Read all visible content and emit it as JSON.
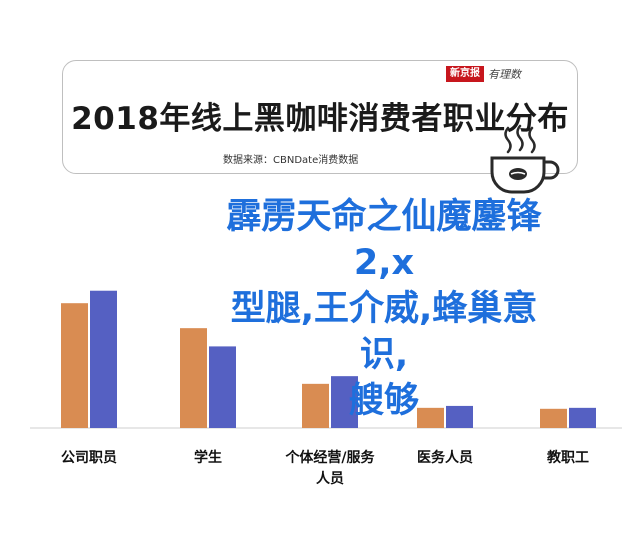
{
  "header": {
    "title": "2018年线上黑咖啡消费者职业分布",
    "source": "数据来源：CBNDate消费数据",
    "watermark_badge": "新京报",
    "watermark_text": "有理数"
  },
  "overlay": {
    "line1": "霹雳天命之仙魔鏖锋2,x",
    "line2": "型腿,王介威,蜂巢意识,",
    "line3": "艘够"
  },
  "chart_data": {
    "type": "bar",
    "title": "2018年线上黑咖啡消费者职业分布",
    "xlabel": "",
    "ylabel": "",
    "categories": [
      "公司职员",
      "学生",
      "个体经营/服务人员",
      "医务人员",
      "教职工"
    ],
    "category_lines": [
      [
        "公司职员"
      ],
      [
        "学生"
      ],
      [
        "个体经营/服务",
        "人员"
      ],
      [
        "医务人员"
      ],
      [
        "教职工"
      ]
    ],
    "series": [
      {
        "values": [
          130,
          104,
          46,
          21,
          20
        ],
        "color": "#d98c52"
      },
      {
        "values": [
          143,
          85,
          54,
          23,
          21
        ],
        "color": "#5560c2"
      }
    ],
    "ylim": [
      0,
      150
    ],
    "grid": false,
    "legend": "none"
  }
}
